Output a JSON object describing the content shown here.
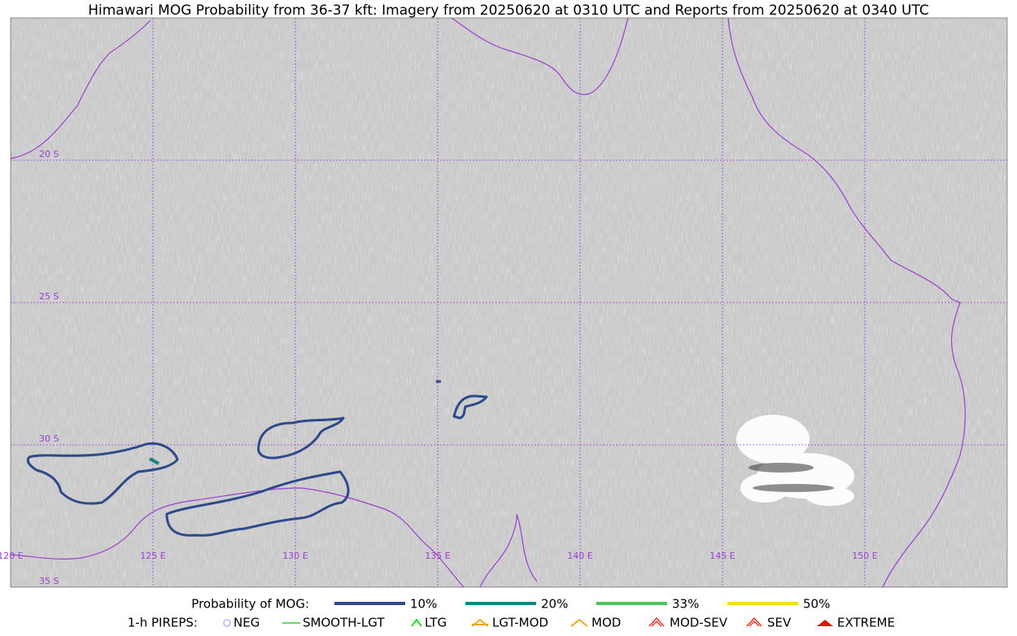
{
  "header": {
    "title": "Himawari MOG Probability from 36-37 kft: Imagery from 20250620 at 0310 UTC and Reports from 20250620 at 0340 UTC"
  },
  "graticule": {
    "lat": [
      {
        "value": -20,
        "label": "20 S"
      },
      {
        "value": -25,
        "label": "25 S"
      },
      {
        "value": -30,
        "label": "30 S"
      },
      {
        "value": -35,
        "label": "35 S"
      }
    ],
    "lon": [
      {
        "value": 120,
        "label": "120 E"
      },
      {
        "value": 125,
        "label": "125 E"
      },
      {
        "value": 130,
        "label": "130 E"
      },
      {
        "value": 135,
        "label": "135 E"
      },
      {
        "value": 140,
        "label": "140 E"
      },
      {
        "value": 145,
        "label": "145 E"
      },
      {
        "value": 150,
        "label": "150 E"
      }
    ]
  },
  "legend": {
    "probability": {
      "title": "Probability of MOG:",
      "items": [
        {
          "label": "10%",
          "color": "#2e4a8a"
        },
        {
          "label": "20%",
          "color": "#14877e"
        },
        {
          "label": "33%",
          "color": "#4cc457"
        },
        {
          "label": "50%",
          "color": "#f4de14"
        }
      ]
    },
    "pireps": {
      "title": "1-h PIREPS:",
      "items": [
        {
          "label": "NEG",
          "color": "#b9b4f0"
        },
        {
          "label": "SMOOTH-LGT",
          "color": "#33cc33"
        },
        {
          "label": "LTG",
          "color": "#22dd22"
        },
        {
          "label": "LGT-MOD",
          "color": "#f2a81c"
        },
        {
          "label": "MOD",
          "color": "#f2a81c"
        },
        {
          "label": "MOD-SEV",
          "color": "#e8332a"
        },
        {
          "label": "SEV",
          "color": "#e8332a"
        },
        {
          "label": "EXTREME",
          "color": "#e01010"
        }
      ]
    }
  }
}
